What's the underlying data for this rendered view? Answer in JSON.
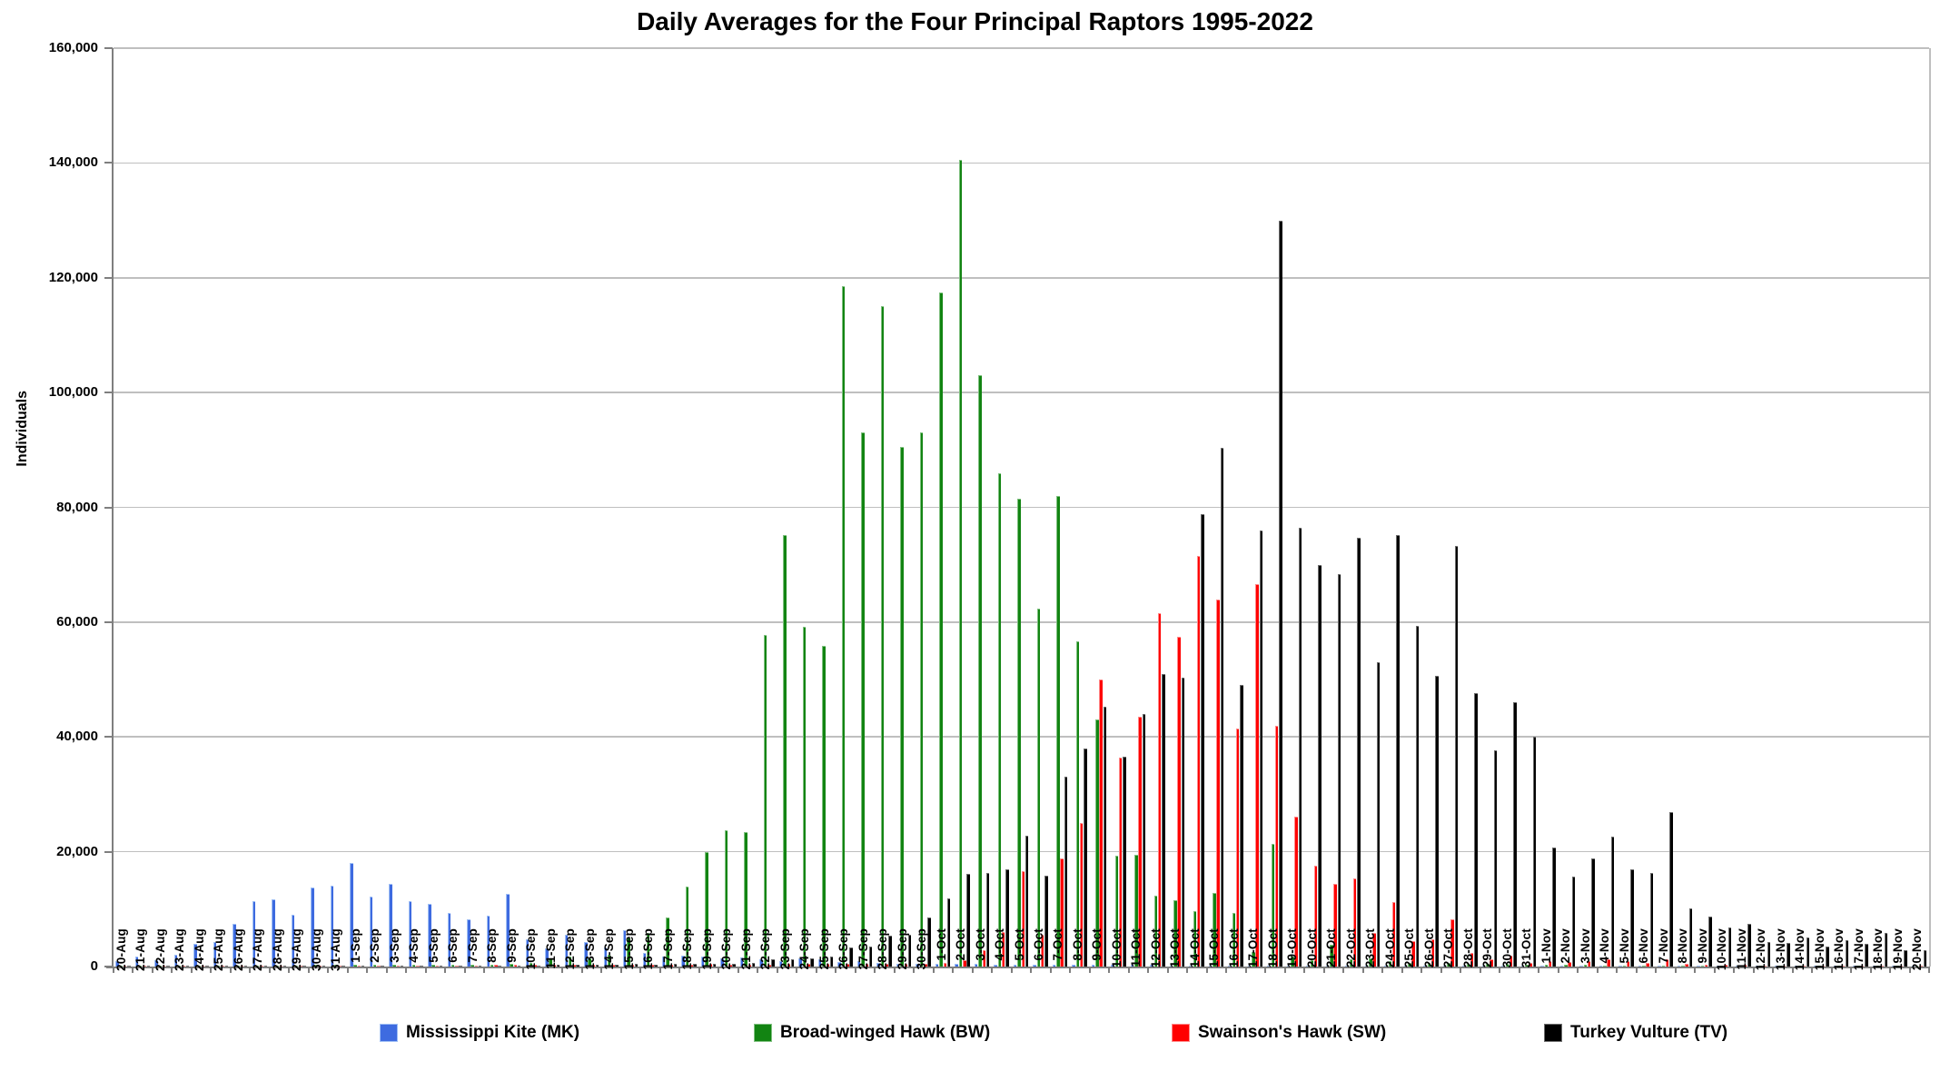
{
  "chart_data": {
    "type": "bar",
    "title": "Daily Averages for the Four Principal Raptors 1995-2022",
    "ylabel": "Individuals",
    "xlabel": "",
    "ylim": [
      0,
      160000
    ],
    "ytick_step": 20000,
    "grid": true,
    "legend_position": "bottom",
    "categories": [
      "20-Aug",
      "21-Aug",
      "22-Aug",
      "23-Aug",
      "24-Aug",
      "25-Aug",
      "26-Aug",
      "27-Aug",
      "28-Aug",
      "29-Aug",
      "30-Aug",
      "31-Aug",
      "1-Sep",
      "2-Sep",
      "3-Sep",
      "4-Sep",
      "5-Sep",
      "6-Sep",
      "7-Sep",
      "8-Sep",
      "9-Sep",
      "10-Sep",
      "11-Sep",
      "12-Sep",
      "13-Sep",
      "14-Sep",
      "15-Sep",
      "16-Sep",
      "17-Sep",
      "18-Sep",
      "19-Sep",
      "20-Sep",
      "21-Sep",
      "22-Sep",
      "23-Sep",
      "24-Sep",
      "25-Sep",
      "26-Sep",
      "27-Sep",
      "28-Sep",
      "29-Sep",
      "30-Sep",
      "1-Oct",
      "2-Oct",
      "3-Oct",
      "4-Oct",
      "5-Oct",
      "6-Oct",
      "7-Oct",
      "8-Oct",
      "9-Oct",
      "10-Oct",
      "11-Oct",
      "12-Oct",
      "13-Oct",
      "14-Oct",
      "15-Oct",
      "16-Oct",
      "17-Oct",
      "18-Oct",
      "19-Oct",
      "20-Oct",
      "21-Oct",
      "22-Oct",
      "23-Oct",
      "24-Oct",
      "25-Oct",
      "26-Oct",
      "27-Oct",
      "28-Oct",
      "29-Oct",
      "30-Oct",
      "31-Oct",
      "1-Nov",
      "2-Nov",
      "3-Nov",
      "4-Nov",
      "5-Nov",
      "6-Nov",
      "7-Nov",
      "8-Nov",
      "9-Nov",
      "10-Nov",
      "11-Nov",
      "12-Nov",
      "13-Nov",
      "14-Nov",
      "15-Nov",
      "16-Nov",
      "17-Nov",
      "18-Nov",
      "19-Nov",
      "20-Nov"
    ],
    "series": [
      {
        "name": "Mississippi Kite (MK)",
        "color": "#3e6be0",
        "edge": "#9fbff5",
        "values": [
          1000,
          1800,
          1100,
          2100,
          4000,
          4200,
          7400,
          11400,
          11700,
          9000,
          13800,
          14100,
          18100,
          12200,
          14400,
          11400,
          10900,
          9300,
          8200,
          8800,
          12600,
          4800,
          3200,
          5600,
          4200,
          3400,
          6400,
          2400,
          1800,
          1900,
          1800,
          1400,
          1600,
          1200,
          900,
          1500,
          1300,
          800,
          900,
          600,
          500,
          500,
          500,
          400,
          400,
          300,
          300,
          300,
          300,
          300,
          300,
          300,
          250,
          250,
          200,
          200,
          200,
          200,
          150,
          150,
          100,
          100,
          100,
          100,
          100,
          100,
          80,
          80,
          80,
          60,
          60,
          60,
          50,
          40,
          40,
          30,
          30,
          30,
          30,
          30,
          20,
          20,
          20,
          20,
          20,
          20,
          20,
          10,
          10,
          10,
          10,
          10,
          10
        ]
      },
      {
        "name": "Broad-winged Hawk (BW)",
        "color": "#128412",
        "edge": "#7fc07f",
        "values": [
          50,
          80,
          60,
          80,
          100,
          120,
          150,
          200,
          200,
          200,
          250,
          250,
          300,
          250,
          300,
          300,
          250,
          250,
          300,
          350,
          400,
          600,
          1400,
          1800,
          1400,
          2100,
          5000,
          5900,
          8500,
          13900,
          20000,
          23700,
          23500,
          57800,
          75200,
          59200,
          55900,
          118500,
          93000,
          115000,
          90500,
          93000,
          117500,
          140500,
          103000,
          86000,
          81500,
          62400,
          82000,
          56600,
          43000,
          19300,
          19500,
          12400,
          11600,
          9700,
          12900,
          9400,
          2500,
          21400,
          1800,
          1100,
          3800,
          1300,
          1500,
          1000,
          600,
          700,
          700,
          500,
          400,
          400,
          300,
          300,
          250,
          250,
          200,
          200,
          200,
          200,
          150,
          150,
          150,
          100,
          100,
          100,
          100,
          100,
          100,
          100,
          100,
          100,
          100
        ]
      },
      {
        "name": "Swainson's Hawk (SW)",
        "color": "#ff0000",
        "edge": "#ff8a8a",
        "values": [
          50,
          80,
          80,
          100,
          100,
          100,
          100,
          150,
          150,
          100,
          150,
          150,
          150,
          150,
          200,
          200,
          200,
          200,
          200,
          250,
          250,
          250,
          250,
          300,
          250,
          300,
          300,
          250,
          300,
          350,
          400,
          300,
          300,
          350,
          400,
          400,
          400,
          450,
          450,
          500,
          500,
          550,
          600,
          1100,
          2900,
          6000,
          16600,
          5600,
          18800,
          25000,
          50000,
          36400,
          43500,
          61500,
          57500,
          71500,
          64000,
          41500,
          66700,
          42000,
          26100,
          17600,
          14400,
          15300,
          5900,
          11300,
          4400,
          4800,
          8300,
          2300,
          1200,
          1900,
          600,
          900,
          800,
          1000,
          1200,
          900,
          700,
          1300,
          500,
          300,
          250,
          250,
          200,
          200,
          200,
          150,
          150,
          150,
          150,
          100,
          100
        ]
      },
      {
        "name": "Turkey Vulture (TV)",
        "color": "#000000",
        "edge": "#6e6e6e",
        "values": [
          30,
          40,
          40,
          50,
          50,
          50,
          60,
          60,
          60,
          60,
          80,
          80,
          100,
          100,
          100,
          100,
          120,
          120,
          150,
          150,
          200,
          200,
          250,
          300,
          300,
          350,
          400,
          350,
          400,
          450,
          500,
          550,
          700,
          1200,
          1300,
          1500,
          1800,
          3300,
          3500,
          5400,
          5600,
          8500,
          11900,
          16100,
          16300,
          17000,
          22800,
          15900,
          33000,
          38000,
          45300,
          36600,
          44000,
          51000,
          50400,
          78800,
          90400,
          49100,
          76000,
          130000,
          76500,
          70000,
          68400,
          74700,
          53000,
          75200,
          59300,
          50600,
          73300,
          47700,
          37600,
          46100,
          40100,
          20700,
          15700,
          18800,
          22600,
          16900,
          16300,
          26900,
          10100,
          8700,
          6800,
          7400,
          4200,
          4100,
          5100,
          3500,
          4600,
          4000,
          5800,
          2800,
          2800
        ]
      }
    ]
  }
}
